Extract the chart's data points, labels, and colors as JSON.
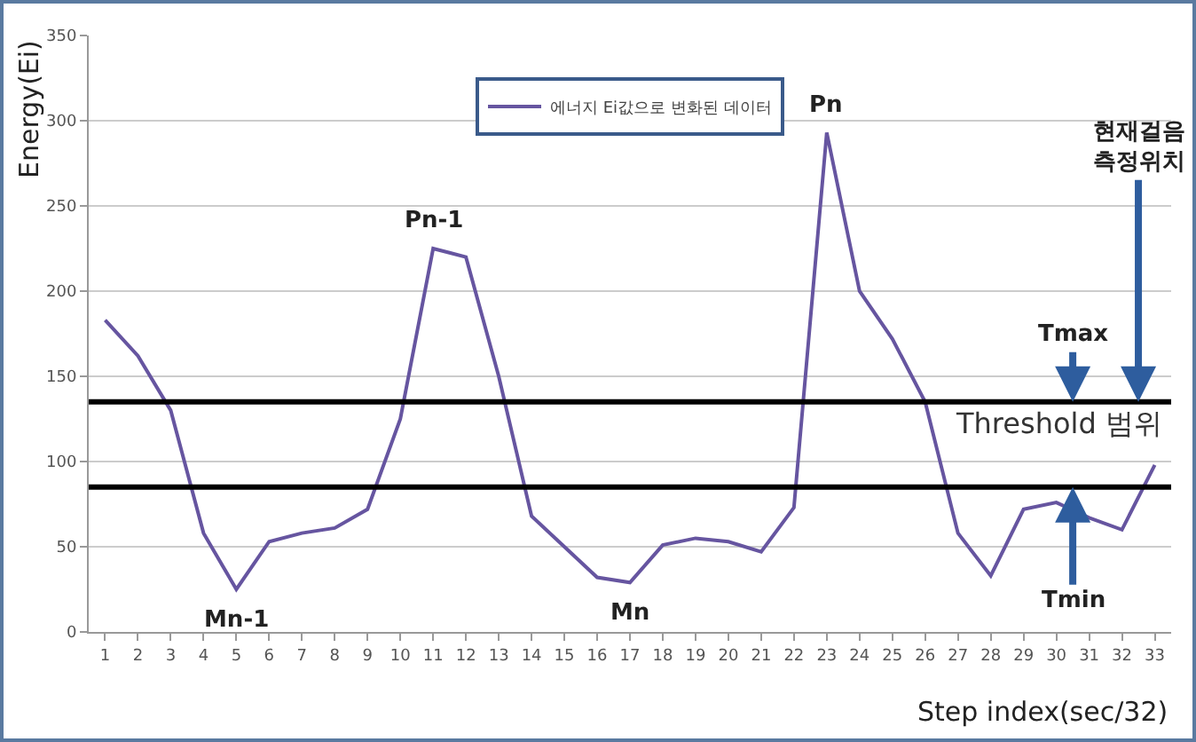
{
  "chart_data": {
    "type": "line",
    "xlabel": "Step index(sec/32)",
    "ylabel": "Energy(Ei)",
    "x": [
      1,
      2,
      3,
      4,
      5,
      6,
      7,
      8,
      9,
      10,
      11,
      12,
      13,
      14,
      15,
      16,
      17,
      18,
      19,
      20,
      21,
      22,
      23,
      24,
      25,
      26,
      27,
      28,
      29,
      30,
      31,
      32,
      33
    ],
    "series": [
      {
        "name": "에너지 Ei값으로 변화된 데이터",
        "color": "#6655a0",
        "values": [
          183,
          162,
          130,
          58,
          25,
          53,
          58,
          61,
          72,
          125,
          225,
          220,
          150,
          68,
          50,
          32,
          29,
          51,
          55,
          53,
          47,
          73,
          293,
          200,
          172,
          135,
          58,
          33,
          72,
          76,
          67,
          60,
          98
        ]
      }
    ],
    "xlim": [
      0.5,
      33.5
    ],
    "xticks": [
      1,
      2,
      3,
      4,
      5,
      6,
      7,
      8,
      9,
      10,
      11,
      12,
      13,
      14,
      15,
      16,
      17,
      18,
      19,
      20,
      21,
      22,
      23,
      24,
      25,
      26,
      27,
      28,
      29,
      30,
      31,
      32,
      33
    ],
    "ylim": [
      0,
      350
    ],
    "yticks": [
      0,
      50,
      100,
      150,
      200,
      250,
      300,
      350
    ],
    "ref_lines": [
      {
        "axis": "y",
        "value": 135,
        "label": "Tmax",
        "color": "#000000"
      },
      {
        "axis": "y",
        "value": 85,
        "label": "Tmin",
        "color": "#000000"
      }
    ],
    "annotations": [
      {
        "text": "Pn-1",
        "x": 11,
        "y": 225
      },
      {
        "text": "Mn-1",
        "x": 5,
        "y": 25
      },
      {
        "text": "Pn",
        "x": 23,
        "y": 293
      },
      {
        "text": "Mn",
        "x": 17,
        "y": 29
      },
      {
        "text": "현재걸음\n측정위치",
        "x": 32.5,
        "y": 135
      },
      "Threshold 범위"
    ],
    "grid": "y",
    "legend": "top",
    "marker": "none",
    "line_style": "solid"
  }
}
